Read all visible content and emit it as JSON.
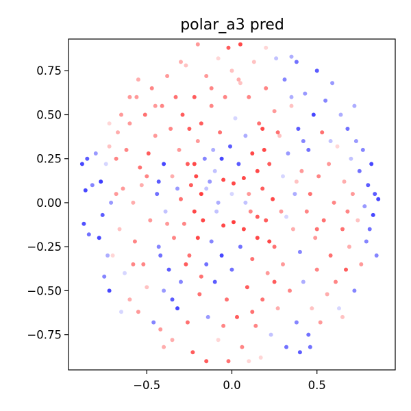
{
  "chart_data": {
    "type": "scatter",
    "title": "polar_a3 pred",
    "xlabel": "",
    "ylabel": "",
    "xlim": [
      -0.96,
      0.96
    ],
    "ylim": [
      -0.95,
      0.93
    ],
    "xticks": [
      -0.5,
      0.0,
      0.5
    ],
    "xtick_labels": [
      "−0.5",
      "0.0",
      "0.5"
    ],
    "yticks": [
      0.75,
      0.5,
      0.25,
      0.0,
      -0.25,
      -0.5,
      -0.75
    ],
    "ytick_labels": [
      "0.75",
      "0.50",
      "0.25",
      "0.00",
      "−0.25",
      "−0.50",
      "−0.75"
    ],
    "grid": false,
    "colormap": "bwr",
    "color_range": [
      -1,
      1
    ],
    "colors": {
      "low": "#0000ff",
      "mid": "#ffffff",
      "high": "#ff0000"
    },
    "point_alpha": 0.8,
    "description_of_pattern": "",
    "points": [
      [
        -0.88,
        0.22,
        -0.9
      ],
      [
        -0.85,
        0.25,
        -0.8
      ],
      [
        -0.87,
        -0.12,
        -0.85
      ],
      [
        -0.86,
        0.07,
        -0.9
      ],
      [
        -0.84,
        -0.18,
        -0.7
      ],
      [
        -0.82,
        0.1,
        -0.6
      ],
      [
        -0.8,
        0.28,
        -0.5
      ],
      [
        -0.78,
        -0.2,
        -0.9
      ],
      [
        -0.77,
        0.12,
        -0.95
      ],
      [
        -0.76,
        -0.07,
        -0.8
      ],
      [
        -0.74,
        0.22,
        -0.2
      ],
      [
        -0.73,
        -0.3,
        -0.4
      ],
      [
        -0.72,
        0.32,
        0.3
      ],
      [
        -0.71,
        0.0,
        -0.5
      ],
      [
        -0.75,
        -0.42,
        -0.6
      ],
      [
        -0.72,
        -0.5,
        -0.9
      ],
      [
        -0.7,
        -0.3,
        0.2
      ],
      [
        -0.68,
        0.25,
        0.6
      ],
      [
        -0.67,
        0.4,
        0.4
      ],
      [
        -0.66,
        -0.15,
        0.3
      ],
      [
        -0.65,
        0.5,
        0.5
      ],
      [
        -0.64,
        0.08,
        0.5
      ],
      [
        -0.63,
        -0.4,
        -0.2
      ],
      [
        -0.62,
        0.3,
        0.6
      ],
      [
        -0.6,
        -0.55,
        0.4
      ],
      [
        -0.6,
        0.45,
        0.5
      ],
      [
        -0.58,
        0.0,
        0.4
      ],
      [
        -0.57,
        -0.22,
        0.6
      ],
      [
        -0.56,
        0.6,
        0.5
      ],
      [
        -0.55,
        -0.62,
        0.5
      ],
      [
        -0.54,
        0.2,
        0.7
      ],
      [
        -0.53,
        0.1,
        0.4
      ],
      [
        -0.52,
        -0.35,
        0.6
      ],
      [
        -0.51,
        0.5,
        0.7
      ],
      [
        -0.5,
        -0.48,
        0.3
      ],
      [
        -0.49,
        0.28,
        0.8
      ],
      [
        -0.48,
        -0.1,
        0.5
      ],
      [
        -0.47,
        0.65,
        0.6
      ],
      [
        -0.46,
        -0.68,
        -0.6
      ],
      [
        -0.45,
        0.38,
        0.5
      ],
      [
        -0.44,
        0.05,
        -0.7
      ],
      [
        -0.43,
        -0.25,
        -0.6
      ],
      [
        -0.43,
        0.12,
        -0.8
      ],
      [
        -0.42,
        -0.72,
        0.5
      ],
      [
        -0.41,
        0.55,
        0.6
      ],
      [
        -0.4,
        -0.5,
        -0.5
      ],
      [
        -0.4,
        0.22,
        -0.9
      ],
      [
        -0.39,
        -0.05,
        -0.3
      ],
      [
        -0.38,
        0.72,
        0.5
      ],
      [
        -0.37,
        -0.38,
        -0.8
      ],
      [
        -0.36,
        0.42,
        0.6
      ],
      [
        -0.35,
        -0.78,
        0.4
      ],
      [
        -0.35,
        0.15,
        0.4
      ],
      [
        -0.34,
        -0.2,
        0.6
      ],
      [
        -0.33,
        0.6,
        0.7
      ],
      [
        -0.32,
        -0.6,
        -0.9
      ],
      [
        -0.31,
        0.3,
        0.5
      ],
      [
        -0.3,
        0.02,
        0.7
      ],
      [
        -0.3,
        -0.45,
        -0.6
      ],
      [
        -0.29,
        0.5,
        0.8
      ],
      [
        -0.28,
        -0.12,
        0.6
      ],
      [
        -0.27,
        0.78,
        0.3
      ],
      [
        -0.26,
        -0.68,
        0.7
      ],
      [
        -0.26,
        0.22,
        0.8
      ],
      [
        -0.25,
        -0.3,
        0.7
      ],
      [
        -0.24,
        0.1,
        0.8
      ],
      [
        -0.23,
        -0.85,
        0.8
      ],
      [
        -0.22,
        0.6,
        0.8
      ],
      [
        -0.22,
        -0.05,
        0.9
      ],
      [
        -0.21,
        0.15,
        0.9
      ],
      [
        -0.2,
        -0.2,
        0.9
      ],
      [
        -0.2,
        0.35,
        0.5
      ],
      [
        -0.19,
        -0.52,
        0.7
      ],
      [
        -0.18,
        0.45,
        0.8
      ],
      [
        -0.18,
        0.05,
        0.95
      ],
      [
        -0.17,
        -0.1,
        0.9
      ],
      [
        -0.16,
        0.25,
        -0.6
      ],
      [
        -0.15,
        -0.35,
        -0.7
      ],
      [
        -0.15,
        0.72,
        0.5
      ],
      [
        -0.14,
        -0.65,
        -0.5
      ],
      [
        -0.13,
        0.12,
        -0.5
      ],
      [
        -0.12,
        -0.22,
        -0.6
      ],
      [
        -0.12,
        0.55,
        0.6
      ],
      [
        -0.11,
        0.3,
        -0.4
      ],
      [
        -0.1,
        -0.45,
        -0.8
      ],
      [
        -0.1,
        0.18,
        -0.3
      ],
      [
        -0.09,
        -0.05,
        -0.3
      ],
      [
        -0.08,
        0.82,
        0.2
      ],
      [
        -0.08,
        -0.78,
        0.2
      ],
      [
        -0.07,
        0.4,
        0.7
      ],
      [
        -0.06,
        0.25,
        -0.9
      ],
      [
        -0.06,
        -0.3,
        -0.9
      ],
      [
        -0.05,
        0.13,
        0.9
      ],
      [
        -0.05,
        -0.13,
        0.9
      ],
      [
        -0.04,
        0.6,
        0.6
      ],
      [
        -0.03,
        -0.55,
        0.7
      ],
      [
        -0.02,
        0.88,
        0.8
      ],
      [
        -0.02,
        -0.9,
        0.7
      ],
      [
        -0.01,
        0.32,
        -0.8
      ],
      [
        0.0,
        -0.38,
        -0.7
      ],
      [
        0.01,
        0.11,
        0.9
      ],
      [
        0.01,
        -0.11,
        0.95
      ],
      [
        0.02,
        0.48,
        -0.2
      ],
      [
        0.03,
        -0.65,
        0.8
      ],
      [
        0.04,
        0.7,
        0.4
      ],
      [
        0.04,
        0.22,
        -0.8
      ],
      [
        0.05,
        -0.25,
        -0.7
      ],
      [
        0.05,
        0.9,
        0.9
      ],
      [
        0.06,
        -0.82,
        0.6
      ],
      [
        0.07,
        0.14,
        0.9
      ],
      [
        0.07,
        -0.15,
        0.9
      ],
      [
        0.08,
        0.38,
        -0.4
      ],
      [
        0.09,
        -0.48,
        0.8
      ],
      [
        0.1,
        0.6,
        0.6
      ],
      [
        0.1,
        0.05,
        0.5
      ],
      [
        0.11,
        -0.05,
        0.6
      ],
      [
        0.12,
        0.28,
        0.9
      ],
      [
        0.12,
        -0.32,
        0.7
      ],
      [
        0.13,
        0.8,
        0.3
      ],
      [
        0.14,
        -0.7,
        0.6
      ],
      [
        0.15,
        0.18,
        0.9
      ],
      [
        0.15,
        -0.2,
        0.9
      ],
      [
        0.16,
        0.45,
        0.7
      ],
      [
        0.17,
        -0.88,
        0.2
      ],
      [
        0.18,
        0.08,
        0.8
      ],
      [
        0.18,
        -0.55,
        0.7
      ],
      [
        0.19,
        0.3,
        0.9
      ],
      [
        0.2,
        -0.1,
        0.8
      ],
      [
        0.2,
        0.65,
        0.6
      ],
      [
        0.21,
        -0.4,
        0.5
      ],
      [
        0.22,
        0.22,
        0.8
      ],
      [
        0.23,
        -0.75,
        -0.3
      ],
      [
        0.24,
        0.02,
        0.9
      ],
      [
        0.25,
        0.52,
        0.5
      ],
      [
        0.25,
        -0.25,
        0.7
      ],
      [
        0.26,
        0.82,
        -0.3
      ],
      [
        0.27,
        -0.6,
        0.4
      ],
      [
        0.28,
        0.38,
        0.3
      ],
      [
        0.29,
        -0.05,
        0.5
      ],
      [
        0.3,
        0.15,
        -0.2
      ],
      [
        0.3,
        -0.35,
        0.5
      ],
      [
        0.31,
        0.7,
        -0.6
      ],
      [
        0.32,
        -0.82,
        -0.7
      ],
      [
        0.33,
        0.28,
        -0.5
      ],
      [
        0.34,
        -0.5,
        0.6
      ],
      [
        0.35,
        0.55,
        0.3
      ],
      [
        0.36,
        -0.15,
        0.4
      ],
      [
        0.37,
        0.05,
        -0.4
      ],
      [
        0.38,
        -0.68,
        -0.6
      ],
      [
        0.38,
        0.8,
        -0.7
      ],
      [
        0.39,
        0.42,
        -0.8
      ],
      [
        0.4,
        -0.28,
        -0.6
      ],
      [
        0.41,
        0.18,
        0.5
      ],
      [
        0.42,
        -0.45,
        -0.4
      ],
      [
        0.43,
        0.62,
        -0.5
      ],
      [
        0.44,
        -0.05,
        0.6
      ],
      [
        0.45,
        -0.75,
        -0.7
      ],
      [
        0.45,
        0.3,
        -0.7
      ],
      [
        0.46,
        0.05,
        0.7
      ],
      [
        0.47,
        -0.6,
        0.3
      ],
      [
        0.48,
        0.5,
        -0.9
      ],
      [
        0.49,
        -0.2,
        0.5
      ],
      [
        0.5,
        0.75,
        -0.8
      ],
      [
        0.5,
        -0.38,
        0.6
      ],
      [
        0.51,
        0.15,
        0.6
      ],
      [
        0.52,
        -0.68,
        0.5
      ],
      [
        0.53,
        0.4,
        0.7
      ],
      [
        0.54,
        -0.1,
        0.7
      ],
      [
        0.55,
        0.58,
        -0.6
      ],
      [
        0.56,
        -0.52,
        0.4
      ],
      [
        0.57,
        0.22,
        0.5
      ],
      [
        0.58,
        -0.3,
        0.7
      ],
      [
        0.59,
        0.68,
        -0.5
      ],
      [
        0.6,
        0.0,
        0.6
      ],
      [
        0.61,
        -0.45,
        0.6
      ],
      [
        0.62,
        0.32,
        0.2
      ],
      [
        0.63,
        -0.6,
        -0.2
      ],
      [
        0.64,
        0.5,
        -0.4
      ],
      [
        0.65,
        -0.15,
        0.7
      ],
      [
        0.66,
        0.12,
        0.4
      ],
      [
        0.67,
        -0.38,
        0.8
      ],
      [
        0.68,
        0.42,
        -0.7
      ],
      [
        0.69,
        -0.25,
        0.4
      ],
      [
        0.7,
        0.25,
        -0.3
      ],
      [
        0.71,
        0.05,
        0.5
      ],
      [
        0.72,
        -0.5,
        -0.6
      ],
      [
        0.73,
        0.35,
        -0.5
      ],
      [
        0.74,
        -0.1,
        0.3
      ],
      [
        0.75,
        0.18,
        -0.7
      ],
      [
        0.76,
        -0.35,
        0.5
      ],
      [
        0.77,
        0.3,
        -0.6
      ],
      [
        0.78,
        -0.02,
        -0.5
      ],
      [
        0.79,
        -0.22,
        -0.6
      ],
      [
        0.8,
        0.1,
        -0.8
      ],
      [
        0.81,
        -0.15,
        -0.7
      ],
      [
        0.82,
        0.22,
        -0.9
      ],
      [
        0.83,
        -0.07,
        -0.9
      ],
      [
        0.84,
        0.05,
        -0.8
      ],
      [
        0.85,
        -0.3,
        -0.6
      ],
      [
        0.86,
        0.02,
        -0.9
      ],
      [
        -0.6,
        0.6,
        0.5
      ],
      [
        -0.55,
        0.7,
        0.4
      ],
      [
        -0.3,
        0.8,
        0.4
      ],
      [
        0.0,
        0.75,
        0.3
      ],
      [
        0.2,
        0.88,
        0.2
      ],
      [
        0.35,
        0.83,
        -0.4
      ],
      [
        -0.2,
        0.9,
        0.5
      ],
      [
        0.4,
        -0.85,
        -0.8
      ],
      [
        -0.4,
        -0.82,
        0.4
      ],
      [
        -0.15,
        -0.9,
        0.8
      ],
      [
        0.1,
        -0.9,
        0.2
      ],
      [
        -0.65,
        -0.62,
        -0.2
      ],
      [
        0.65,
        -0.65,
        0.3
      ],
      [
        -0.72,
        0.45,
        0.2
      ],
      [
        0.72,
        0.55,
        -0.4
      ],
      [
        -0.45,
        0.55,
        0.5
      ],
      [
        0.46,
        -0.82,
        -0.7
      ],
      [
        -0.08,
        0.0,
        -0.4
      ],
      [
        0.08,
        0.0,
        -0.3
      ],
      [
        0.0,
        0.05,
        -0.2
      ],
      [
        -0.25,
        0.42,
        0.8
      ],
      [
        0.25,
        -0.45,
        0.8
      ],
      [
        -0.35,
        -0.55,
        -0.8
      ],
      [
        0.35,
        0.6,
        -0.4
      ],
      [
        -0.5,
        0.15,
        0.6
      ],
      [
        0.5,
        -0.15,
        0.7
      ],
      [
        -0.42,
        -0.3,
        -0.7
      ],
      [
        0.42,
        0.35,
        -0.6
      ],
      [
        -0.27,
        -0.35,
        0.8
      ],
      [
        0.27,
        0.4,
        0.7
      ],
      [
        -0.18,
        -0.42,
        0.7
      ],
      [
        0.18,
        0.42,
        0.9
      ],
      [
        -0.32,
        0.08,
        -0.5
      ],
      [
        0.32,
        -0.08,
        -0.2
      ],
      [
        -0.12,
        0.65,
        0.6
      ],
      [
        0.12,
        -0.62,
        0.7
      ],
      [
        -0.58,
        -0.35,
        0.6
      ],
      [
        0.58,
        0.35,
        -0.3
      ],
      [
        -0.68,
        0.05,
        0.5
      ],
      [
        0.68,
        -0.05,
        0.6
      ],
      [
        -0.05,
        -0.7,
        0.6
      ],
      [
        0.05,
        0.68,
        0.3
      ],
      [
        -0.22,
        0.22,
        0.9
      ],
      [
        0.22,
        -0.22,
        0.9
      ],
      [
        -0.38,
        -0.12,
        0.5
      ],
      [
        0.38,
        0.12,
        0.3
      ],
      [
        -0.15,
        0.08,
        -0.3
      ],
      [
        0.15,
        -0.08,
        0.8
      ]
    ]
  }
}
